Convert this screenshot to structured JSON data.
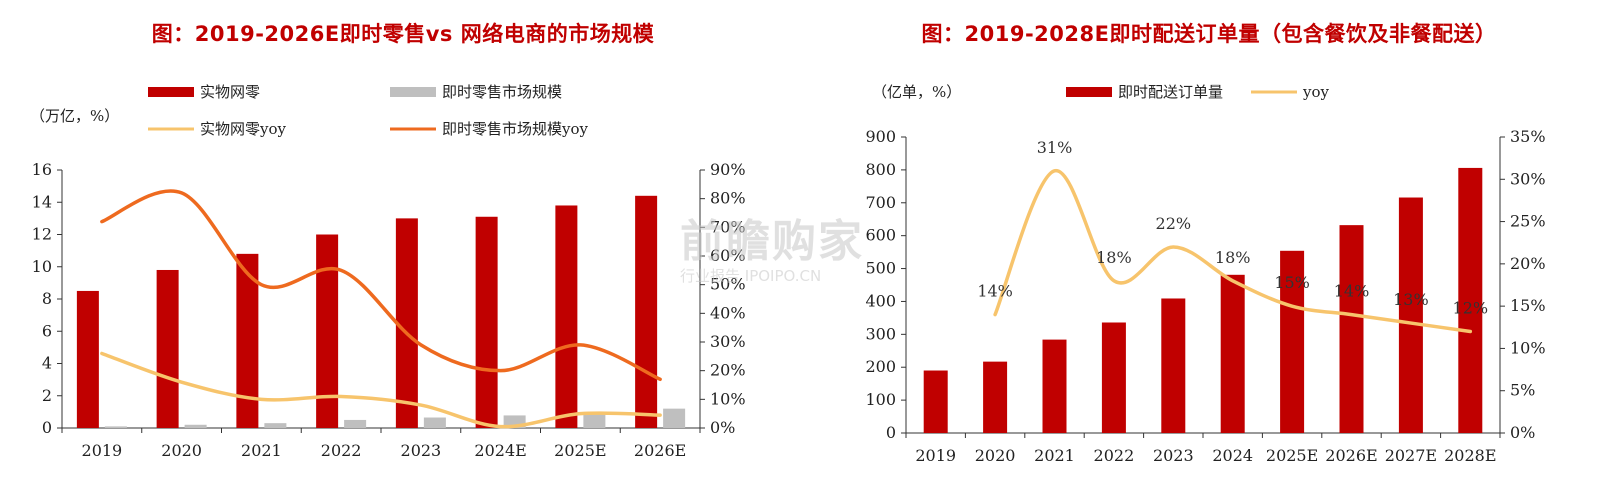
{
  "left": {
    "title": "图：2019-2026E即时零售vs 网络电商的市场规模",
    "unit_label": "（万亿，%）"
  },
  "right": {
    "title": "图：2019-2028E即时配送订单量（包含餐饮及非餐配送）",
    "unit_label": "（亿单，%）"
  },
  "watermark": {
    "main": "前瞻购家",
    "sub": "行业报告 IPOIPO.CN"
  },
  "chart_data": [
    {
      "type": "bar",
      "categories": [
        "2019",
        "2020",
        "2021",
        "2022",
        "2023",
        "2024E",
        "2025E",
        "2026E"
      ],
      "series": [
        {
          "name": "实物网零",
          "kind": "bar",
          "axis": "left",
          "color": "#c00000",
          "values": [
            8.5,
            9.8,
            10.8,
            12.0,
            13.0,
            13.1,
            13.8,
            14.4
          ]
        },
        {
          "name": "即时零售市场规模",
          "kind": "bar",
          "axis": "left",
          "color": "#bfbfbf",
          "values": [
            0.1,
            0.2,
            0.3,
            0.5,
            0.65,
            0.78,
            0.95,
            1.2
          ]
        },
        {
          "name": "实物网零yoy",
          "kind": "line",
          "axis": "right",
          "color": "#f7c46c",
          "values": [
            26,
            16,
            10,
            11,
            8,
            0.5,
            5,
            4.5
          ]
        },
        {
          "name": "即时零售市场规模yoy",
          "kind": "line",
          "axis": "right",
          "color": "#ee6a1f",
          "values": [
            72,
            82,
            50,
            55,
            29,
            20,
            29,
            17
          ]
        }
      ],
      "y_left": {
        "min": 0,
        "max": 16,
        "ticks": [
          "0",
          "2",
          "4",
          "6",
          "8",
          "10",
          "12",
          "14",
          "16"
        ]
      },
      "y_right": {
        "min": 0,
        "max": 90,
        "ticks": [
          "0%",
          "10%",
          "20%",
          "30%",
          "40%",
          "50%",
          "60%",
          "70%",
          "80%",
          "90%"
        ]
      },
      "legend_position": "top",
      "grid": false
    },
    {
      "type": "bar",
      "categories": [
        "2019",
        "2020",
        "2021",
        "2022",
        "2023",
        "2024",
        "2025E",
        "2026E",
        "2027E",
        "2028E"
      ],
      "series": [
        {
          "name": "即时配送订单量",
          "kind": "bar",
          "axis": "left",
          "color": "#c00000",
          "values": [
            190,
            217,
            284,
            336,
            409,
            481,
            554,
            632,
            716,
            806
          ]
        },
        {
          "name": "yoy",
          "kind": "line",
          "axis": "right",
          "color": "#f7c46c",
          "values": [
            null,
            14,
            31,
            18,
            22,
            18,
            15,
            14,
            13,
            12
          ],
          "labels": [
            "",
            "14%",
            "31%",
            "18%",
            "22%",
            "18%",
            "15%",
            "14%",
            "13%",
            "12%"
          ]
        }
      ],
      "y_left": {
        "min": 0,
        "max": 900,
        "ticks": [
          "0",
          "100",
          "200",
          "300",
          "400",
          "500",
          "600",
          "700",
          "800",
          "900"
        ]
      },
      "y_right": {
        "min": 0,
        "max": 35,
        "ticks": [
          "0%",
          "5%",
          "10%",
          "15%",
          "20%",
          "25%",
          "30%",
          "35%"
        ]
      },
      "legend_position": "top",
      "grid": false
    }
  ]
}
